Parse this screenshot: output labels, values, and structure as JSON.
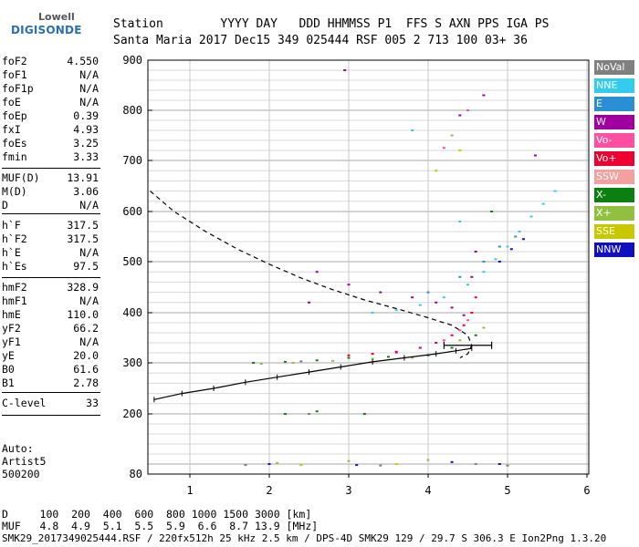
{
  "logo": {
    "top": "Lowell",
    "bottom": "DIGISONDE"
  },
  "header": {
    "line1": "Station        YYYY DAY   DDD HHMMSS P1  FFS S AXN PPS IGA PS",
    "line2": "Santa Maria 2017 Dec15 349 025444 RSF 005 2 713 100 03+ 36"
  },
  "params": [
    {
      "label": "foF2",
      "value": "4.550"
    },
    {
      "label": "foF1",
      "value": "N/A"
    },
    {
      "label": "foF1p",
      "value": "N/A"
    },
    {
      "label": "foE",
      "value": "N/A"
    },
    {
      "label": "foEp",
      "value": "0.39"
    },
    {
      "label": "fxI",
      "value": "4.93"
    },
    {
      "label": "foEs",
      "value": "3.25"
    },
    {
      "label": "fmin",
      "value": "3.33"
    },
    {
      "label": "MUF(D)",
      "value": "13.91"
    },
    {
      "label": "M(D)",
      "value": "3.06"
    },
    {
      "label": "D",
      "value": "N/A"
    },
    {
      "label": "h`F",
      "value": "317.5"
    },
    {
      "label": "h`F2",
      "value": "317.5"
    },
    {
      "label": "h`E",
      "value": "N/A"
    },
    {
      "label": "h`Es",
      "value": "97.5"
    },
    {
      "label": "hmF2",
      "value": "328.9"
    },
    {
      "label": "hmF1",
      "value": "N/A"
    },
    {
      "label": "hmE",
      "value": "110.0"
    },
    {
      "label": "yF2",
      "value": "66.2"
    },
    {
      "label": "yF1",
      "value": "N/A"
    },
    {
      "label": "yE",
      "value": "20.0"
    },
    {
      "label": "B0",
      "value": "61.6"
    },
    {
      "label": "B1",
      "value": "2.78"
    },
    {
      "label": "C-level",
      "value": "33"
    }
  ],
  "auto": [
    "Auto:",
    "Artist5",
    "500200"
  ],
  "legend": [
    {
      "label": "NoVal",
      "color": "#808080"
    },
    {
      "label": "NNE",
      "color": "#33ccee"
    },
    {
      "label": "E",
      "color": "#2b8fd6"
    },
    {
      "label": "W",
      "color": "#a000a0"
    },
    {
      "label": "Vo-",
      "color": "#ff4fa0"
    },
    {
      "label": "Vo+",
      "color": "#ee0030"
    },
    {
      "label": "SSW",
      "color": "#f5a0a0"
    },
    {
      "label": "X-",
      "color": "#0b8010"
    },
    {
      "label": "X+",
      "color": "#90c040"
    },
    {
      "label": "SSE",
      "color": "#c8c800"
    },
    {
      "label": "NNW",
      "color": "#1010c0"
    }
  ],
  "footer": {
    "line1": "D     100  200  400  600  800 1000 1500 3000 [km]",
    "line2": "MUF   4.8  4.9  5.1  5.5  5.9  6.6  8.7 13.9 [MHz]",
    "line3": "SMK29_2017349025444.RSF / 220fx512h 25 kHz 2.5 km / DPS-4D SMK29 129 / 29.7 S 306.3 E Ion2Png 1.3.20"
  },
  "chart_data": {
    "type": "scatter",
    "xlim": [
      0.5,
      6.1
    ],
    "ylim": [
      80,
      900
    ],
    "x_ticks": [
      "1",
      "2",
      "3",
      "4",
      "5",
      "6"
    ],
    "y_ticks": [
      "80",
      "200",
      "300",
      "400",
      "500",
      "600",
      "700",
      "800",
      "900"
    ],
    "grid": true,
    "series": [
      {
        "name": "NNE",
        "color": "#33ccee",
        "points": [
          [
            3.3,
            400
          ],
          [
            3.6,
            405
          ],
          [
            3.9,
            415
          ],
          [
            4.2,
            430
          ],
          [
            4.5,
            455
          ],
          [
            4.7,
            480
          ],
          [
            4.85,
            505
          ],
          [
            5.0,
            530
          ],
          [
            5.15,
            560
          ],
          [
            5.3,
            590
          ],
          [
            5.45,
            615
          ],
          [
            3.8,
            760
          ],
          [
            4.4,
            580
          ],
          [
            5.6,
            640
          ]
        ]
      },
      {
        "name": "E",
        "color": "#2b8fd6",
        "points": [
          [
            4.0,
            440
          ],
          [
            4.4,
            470
          ],
          [
            4.7,
            500
          ],
          [
            4.9,
            530
          ],
          [
            5.1,
            550
          ]
        ]
      },
      {
        "name": "W",
        "color": "#a000a0",
        "points": [
          [
            2.6,
            480
          ],
          [
            3.0,
            455
          ],
          [
            3.4,
            440
          ],
          [
            3.8,
            430
          ],
          [
            4.1,
            420
          ],
          [
            4.3,
            410
          ],
          [
            4.45,
            395
          ],
          [
            4.55,
            470
          ],
          [
            4.6,
            520
          ],
          [
            4.4,
            790
          ],
          [
            4.7,
            830
          ],
          [
            2.95,
            880
          ],
          [
            5.35,
            710
          ],
          [
            2.5,
            420
          ]
        ]
      },
      {
        "name": "Vo-",
        "color": "#ff4fa0",
        "points": [
          [
            3.6,
            320
          ],
          [
            3.9,
            330
          ],
          [
            4.2,
            345
          ],
          [
            4.4,
            365
          ],
          [
            4.5,
            385
          ],
          [
            4.2,
            725
          ],
          [
            4.5,
            800
          ]
        ]
      },
      {
        "name": "Vo+",
        "color": "#ee0030",
        "points": [
          [
            3.0,
            315
          ],
          [
            3.3,
            318
          ],
          [
            3.6,
            322
          ],
          [
            3.9,
            330
          ],
          [
            4.1,
            340
          ],
          [
            4.3,
            355
          ],
          [
            4.45,
            375
          ],
          [
            4.55,
            400
          ],
          [
            4.6,
            430
          ]
        ]
      },
      {
        "name": "X-",
        "color": "#0b8010",
        "points": [
          [
            1.8,
            300
          ],
          [
            2.2,
            302
          ],
          [
            2.6,
            305
          ],
          [
            3.0,
            310
          ],
          [
            3.5,
            312
          ],
          [
            4.0,
            315
          ],
          [
            4.3,
            330
          ],
          [
            4.6,
            355
          ],
          [
            4.8,
            600
          ],
          [
            2.2,
            200
          ],
          [
            2.6,
            205
          ],
          [
            3.2,
            200
          ]
        ]
      },
      {
        "name": "X+",
        "color": "#90c040",
        "points": [
          [
            1.9,
            298
          ],
          [
            2.3,
            300
          ],
          [
            2.8,
            304
          ],
          [
            3.3,
            308
          ],
          [
            3.8,
            310
          ],
          [
            4.4,
            345
          ],
          [
            4.7,
            370
          ],
          [
            4.3,
            750
          ],
          [
            2.1,
            102
          ],
          [
            3.0,
            106
          ],
          [
            4.0,
            108
          ]
        ]
      },
      {
        "name": "SSE",
        "color": "#c8c800",
        "points": [
          [
            4.1,
            680
          ],
          [
            4.4,
            720
          ],
          [
            2.4,
            98
          ],
          [
            3.6,
            100
          ]
        ]
      },
      {
        "name": "NNW",
        "color": "#1010c0",
        "points": [
          [
            4.9,
            500
          ],
          [
            5.05,
            525
          ],
          [
            5.2,
            545
          ],
          [
            2.0,
            100
          ],
          [
            3.1,
            98
          ],
          [
            4.3,
            104
          ],
          [
            4.9,
            100
          ]
        ]
      },
      {
        "name": "NoVal",
        "color": "#808080",
        "points": [
          [
            1.7,
            98
          ],
          [
            2.5,
            200
          ],
          [
            3.4,
            97
          ],
          [
            4.6,
            100
          ],
          [
            5.0,
            97
          ],
          [
            2.4,
            303
          ]
        ]
      }
    ],
    "bottomside_profile": [
      [
        0.55,
        228
      ],
      [
        0.9,
        240
      ],
      [
        1.3,
        250
      ],
      [
        1.7,
        262
      ],
      [
        2.1,
        272
      ],
      [
        2.5,
        282
      ],
      [
        2.9,
        292
      ],
      [
        3.3,
        302
      ],
      [
        3.7,
        310
      ],
      [
        4.1,
        318
      ],
      [
        4.35,
        324
      ],
      [
        4.55,
        329
      ]
    ],
    "errorbar": {
      "x": [
        4.2,
        4.8
      ],
      "y": 335
    },
    "topside_profile": [
      [
        0.5,
        640
      ],
      [
        0.8,
        600
      ],
      [
        1.2,
        560
      ],
      [
        1.6,
        525
      ],
      [
        2.0,
        495
      ],
      [
        2.4,
        468
      ],
      [
        2.8,
        445
      ],
      [
        3.2,
        425
      ],
      [
        3.6,
        408
      ],
      [
        4.0,
        390
      ],
      [
        4.3,
        375
      ],
      [
        4.5,
        355
      ],
      [
        4.55,
        335
      ],
      [
        4.5,
        318
      ],
      [
        4.4,
        310
      ]
    ]
  }
}
